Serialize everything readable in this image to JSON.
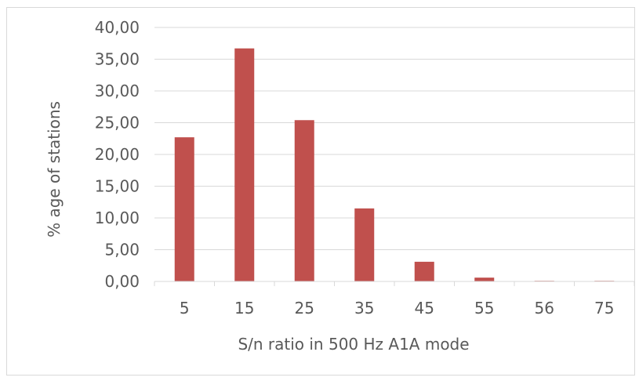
{
  "chart_data": {
    "type": "bar",
    "categories": [
      "5",
      "15",
      "25",
      "35",
      "45",
      "55",
      "56",
      "75"
    ],
    "values": [
      22.7,
      36.7,
      25.4,
      11.5,
      3.1,
      0.6,
      0.1,
      0.1
    ],
    "xlabel": "S/n ratio in 500 Hz A1A mode",
    "ylabel": "% age of stations",
    "ylim": [
      0,
      40
    ],
    "yticks": [
      "0,00",
      "5,00",
      "10,00",
      "15,00",
      "20,00",
      "25,00",
      "30,00",
      "35,00",
      "40,00"
    ],
    "grid": true,
    "legend": "none",
    "bar_color": "#c0504d",
    "grid_color": "#d9d9d9",
    "text_color": "#595959"
  }
}
